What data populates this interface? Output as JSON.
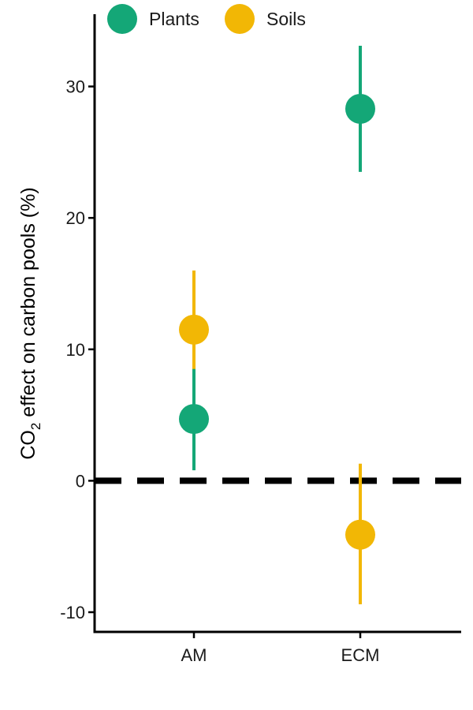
{
  "chart_data": {
    "type": "scatter",
    "title": "",
    "xlabel": "",
    "ylabel": {
      "prefix": "CO",
      "subscript": "2",
      "suffix": " effect on carbon pools (%)"
    },
    "categories": [
      "AM",
      "ECM"
    ],
    "ylim": [
      -11.5,
      35.5
    ],
    "yticks": [
      "-10",
      "0",
      "10",
      "20",
      "30"
    ],
    "reference_line": {
      "y": 0,
      "style": "dashed"
    },
    "legend": {
      "position": "top-left",
      "entries": [
        "Plants",
        "Soils"
      ]
    },
    "grid": false,
    "series": [
      {
        "name": "Plants",
        "color": "#14a777",
        "points": [
          {
            "category": "AM",
            "y": 4.7,
            "lower": 0.8,
            "upper": 8.6
          },
          {
            "category": "ECM",
            "y": 28.3,
            "lower": 23.5,
            "upper": 33.1
          }
        ]
      },
      {
        "name": "Soils",
        "color": "#f2b705",
        "points": [
          {
            "category": "AM",
            "y": 11.5,
            "lower": 8.5,
            "upper": 16.0
          },
          {
            "category": "ECM",
            "y": -4.1,
            "lower": -9.4,
            "upper": 1.3
          }
        ]
      }
    ]
  }
}
